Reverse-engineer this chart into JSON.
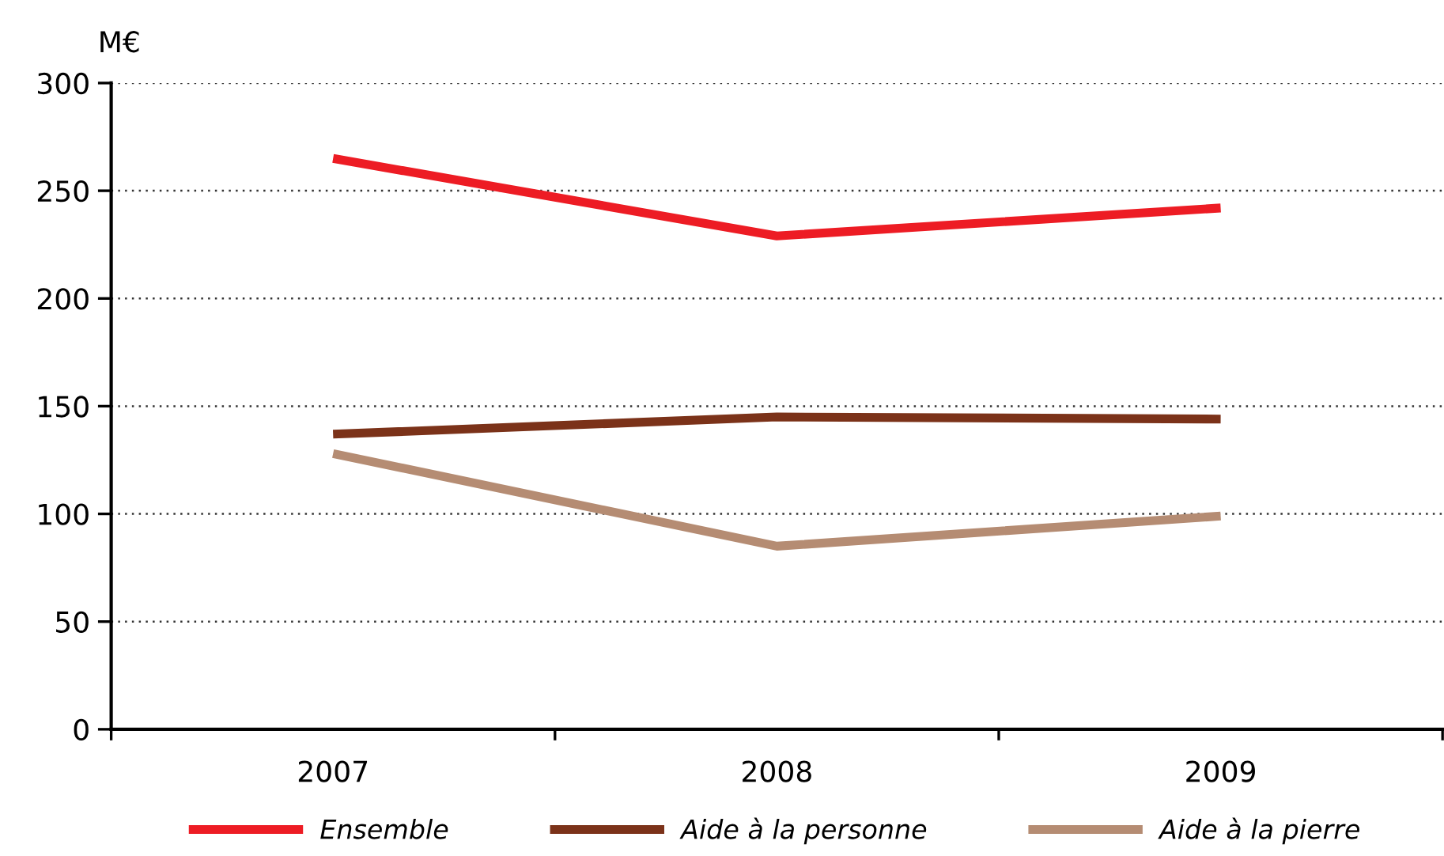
{
  "chart_data": {
    "type": "line",
    "ylabel": "M€",
    "categories": [
      "2007",
      "2008",
      "2009"
    ],
    "series": [
      {
        "name": "Ensemble",
        "color": "#ed1c24",
        "values": [
          265,
          229,
          242
        ]
      },
      {
        "name": "Aide à la personne",
        "color": "#7b3219",
        "values": [
          137,
          145,
          144
        ]
      },
      {
        "name": "Aide à la pierre",
        "color": "#b58c73",
        "values": [
          128,
          85,
          99
        ]
      }
    ],
    "ylim": [
      0,
      300
    ],
    "yticks": [
      0,
      50,
      100,
      150,
      200,
      250,
      300
    ],
    "grid": "y",
    "legend": "bottom",
    "marker": "none",
    "line_style": "solid"
  }
}
